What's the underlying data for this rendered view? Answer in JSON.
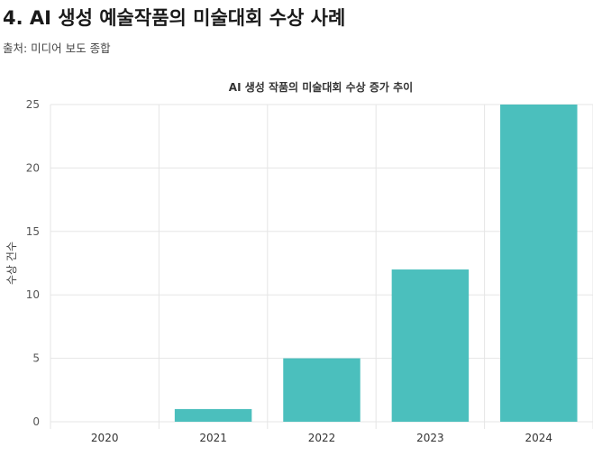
{
  "page": {
    "heading": "4. AI 생성 예술작품의 미술대회 수상 사례",
    "source": "출처: 미디어 보도 종합"
  },
  "chart_data": {
    "type": "bar",
    "title": "AI 생성 작품의 미술대회 수상 증가 추이",
    "xlabel": "",
    "ylabel": "수상 건수",
    "categories": [
      "2020",
      "2021",
      "2022",
      "2023",
      "2024"
    ],
    "values": [
      0,
      1,
      5,
      12,
      25
    ],
    "ylim": [
      0,
      25
    ],
    "yticks": [
      0,
      5,
      10,
      15,
      20,
      25
    ],
    "grid": true,
    "legend": "none",
    "bar_color": "#4bbfbd",
    "grid_color": "#e5e5e5"
  }
}
